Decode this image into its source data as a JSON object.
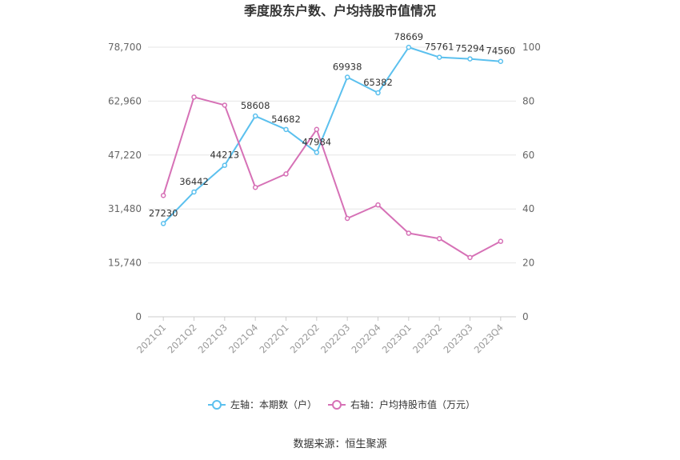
{
  "chart_data": {
    "type": "line",
    "title": "季度股东户数、户均持股市值情况",
    "categories": [
      "2021Q1",
      "2021Q2",
      "2021Q3",
      "2021Q4",
      "2022Q1",
      "2022Q2",
      "2022Q3",
      "2022Q4",
      "2023Q1",
      "2023Q2",
      "2023Q3",
      "2023Q4"
    ],
    "left_axis": {
      "ylim": [
        0,
        78700
      ],
      "ticks": [
        0,
        15740,
        31480,
        47220,
        62960,
        78700
      ],
      "tick_labels": [
        "0",
        "15,740",
        "31,480",
        "47,220",
        "62,960",
        "78,700"
      ]
    },
    "right_axis": {
      "ylim": [
        0,
        100
      ],
      "ticks": [
        0,
        20,
        40,
        60,
        80,
        100
      ],
      "tick_labels": [
        "0",
        "20",
        "40",
        "60",
        "80",
        "100"
      ]
    },
    "series": [
      {
        "name": "左轴：本期数（户）",
        "axis": "left",
        "color": "#5bc0ee",
        "values": [
          27230,
          36442,
          44213,
          58608,
          54682,
          47984,
          69938,
          65382,
          78669,
          75761,
          75294,
          74560
        ],
        "labels": [
          "27230",
          "36442",
          "44213",
          "58608",
          "54682",
          "47984",
          "69938",
          "65382",
          "78669",
          "75761",
          "75294",
          "74560"
        ]
      },
      {
        "name": "右轴：户均持股市值（万元）",
        "axis": "right",
        "color": "#d671b6",
        "values": [
          45.0,
          81.5,
          78.5,
          48.0,
          53.0,
          69.5,
          36.5,
          41.5,
          31.0,
          29.0,
          22.0,
          28.0
        ]
      }
    ],
    "grid": true,
    "legend_position": "bottom",
    "source": "数据来源：恒生聚源"
  }
}
